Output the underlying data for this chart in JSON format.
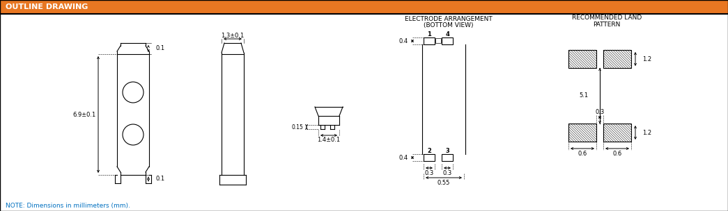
{
  "title": "OUTLINE DRAWING",
  "title_bg": "#E87722",
  "title_color": "#FFFFFF",
  "bg_color": "#FFFFFF",
  "line_color": "#000000",
  "dim_color": "#000000",
  "note_text": "NOTE: Dimensions in millimeters (mm).",
  "note_color": "#0070C0",
  "electrode_title1": "ELECTRODE ARRANGEMENT",
  "electrode_title2": "(BOTTOM VIEW)",
  "land_title1": "RECOMMENDED LAND",
  "land_title2": "PATTERN",
  "dim_69": "6.9±0.1",
  "dim_01_top": "0.1",
  "dim_01_bot": "0.1",
  "dim_13": "1.3±0.1",
  "dim_015": "0.15",
  "dim_14": "1.4±0.1",
  "dim_04_top": "0.4",
  "dim_04_bot": "0.4",
  "dim_03_left": "0.3",
  "dim_03_right": "0.3",
  "dim_055": "0.55",
  "dim_51": "5.1",
  "dim_12_top": "1.2",
  "dim_12_bot": "1.2",
  "dim_03_gap": "0.3",
  "dim_06_left": "0.6",
  "dim_06_right": "0.6",
  "label1": "1",
  "label2": "2",
  "label3": "3",
  "label4": "4"
}
